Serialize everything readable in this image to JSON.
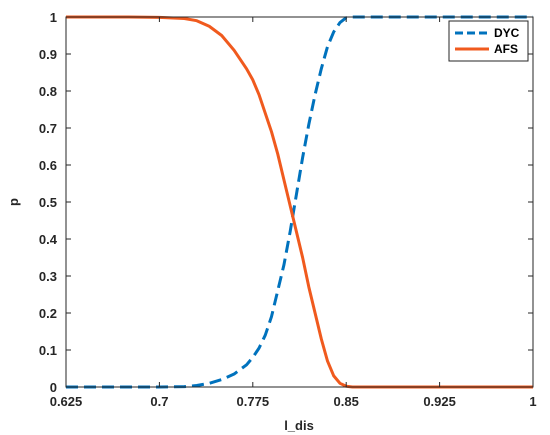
{
  "chart_data": {
    "type": "line",
    "title": "",
    "xlabel": "l_dis",
    "ylabel": "p",
    "xlim": [
      0.625,
      1.0
    ],
    "ylim": [
      0,
      1
    ],
    "grid": false,
    "legend_position": "top-right",
    "xticks": [
      "0.625",
      "0.7",
      "0.775",
      "0.85",
      "0.925",
      "1"
    ],
    "xtick_values": [
      0.625,
      0.7,
      0.775,
      0.85,
      0.925,
      1.0
    ],
    "yticks": [
      "0",
      "0.1",
      "0.2",
      "0.3",
      "0.4",
      "0.5",
      "0.6",
      "0.7",
      "0.8",
      "0.9",
      "1"
    ],
    "ytick_values": [
      0,
      0.1,
      0.2,
      0.3,
      0.4,
      0.5,
      0.6,
      0.7,
      0.8,
      0.9,
      1.0
    ],
    "series": [
      {
        "name": "DYC",
        "color": "#0072BD",
        "style": "dashed",
        "x": [
          0.625,
          0.65,
          0.675,
          0.7,
          0.72,
          0.73,
          0.74,
          0.75,
          0.76,
          0.77,
          0.775,
          0.78,
          0.785,
          0.79,
          0.795,
          0.8,
          0.805,
          0.81,
          0.815,
          0.82,
          0.825,
          0.83,
          0.835,
          0.84,
          0.845,
          0.85,
          0.855,
          0.86,
          0.9,
          0.95,
          1.0
        ],
        "y": [
          0,
          0,
          0,
          0,
          0.001,
          0.004,
          0.01,
          0.02,
          0.035,
          0.06,
          0.08,
          0.105,
          0.14,
          0.19,
          0.26,
          0.33,
          0.42,
          0.52,
          0.62,
          0.71,
          0.79,
          0.86,
          0.92,
          0.96,
          0.985,
          0.998,
          1.0,
          1.0,
          1.0,
          1.0,
          1.0
        ]
      },
      {
        "name": "AFS",
        "color": "#F05A1E",
        "style": "solid",
        "x": [
          0.625,
          0.65,
          0.675,
          0.7,
          0.72,
          0.73,
          0.74,
          0.75,
          0.76,
          0.77,
          0.775,
          0.78,
          0.785,
          0.79,
          0.795,
          0.8,
          0.805,
          0.81,
          0.815,
          0.82,
          0.825,
          0.83,
          0.835,
          0.84,
          0.845,
          0.85,
          0.855,
          0.86,
          0.9,
          0.95,
          1.0
        ],
        "y": [
          1,
          1,
          1,
          0.999,
          0.996,
          0.99,
          0.975,
          0.95,
          0.91,
          0.86,
          0.83,
          0.79,
          0.74,
          0.69,
          0.63,
          0.56,
          0.49,
          0.42,
          0.35,
          0.27,
          0.2,
          0.13,
          0.07,
          0.03,
          0.01,
          0.002,
          0,
          0,
          0,
          0,
          0
        ]
      }
    ]
  }
}
